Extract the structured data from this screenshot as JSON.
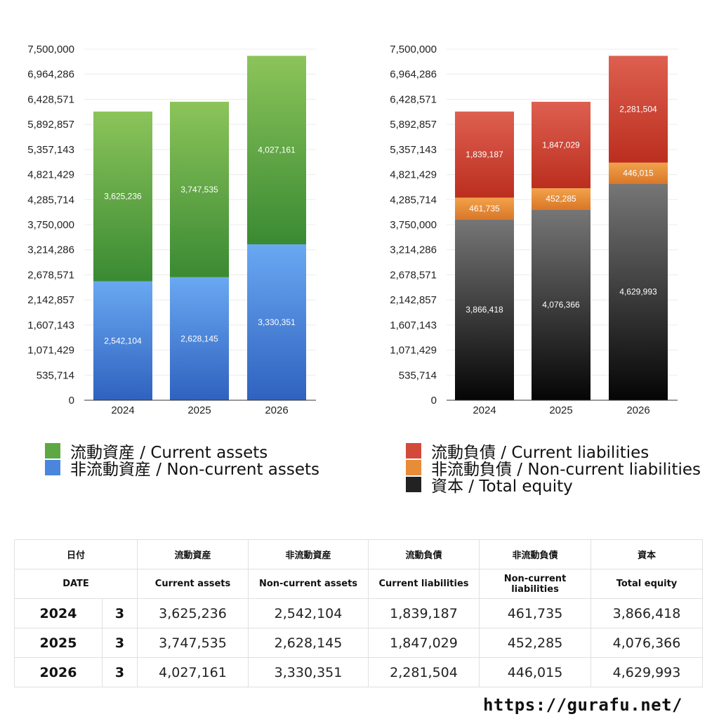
{
  "chart_data": [
    {
      "type": "bar",
      "stacked": true,
      "categories": [
        "2024",
        "2025",
        "2026"
      ],
      "ylim": [
        0,
        7500000
      ],
      "yticks": [
        "0",
        "535,714",
        "1,071,429",
        "1,607,143",
        "2,142,857",
        "2,678,571",
        "3,214,286",
        "3,750,000",
        "4,285,714",
        "4,821,429",
        "5,357,143",
        "5,892,857",
        "6,428,571",
        "6,964,286",
        "7,500,000"
      ],
      "grid": true,
      "legend_position": "bottom",
      "series": [
        {
          "name": "非流動資産 / Non-current assets",
          "values": [
            2542104,
            2628145,
            3330351
          ],
          "labels": [
            "2,542,104",
            "2,628,145",
            "3,330,351"
          ],
          "color_top": "#6aa8f2",
          "color_bottom": "#2f62bf"
        },
        {
          "name": "流動資産 / Current assets",
          "values": [
            3625236,
            3747535,
            4027161
          ],
          "labels": [
            "3,625,236",
            "3,747,535",
            "4,027,161"
          ],
          "color_top": "#8cc45a",
          "color_bottom": "#3a8a33"
        }
      ],
      "legend": [
        {
          "name": "流動資産 / Current assets",
          "color": "#5da845"
        },
        {
          "name": "非流動資産 / Non-current assets",
          "color": "#4a86dc"
        }
      ]
    },
    {
      "type": "bar",
      "stacked": true,
      "categories": [
        "2024",
        "2025",
        "2026"
      ],
      "ylim": [
        0,
        7500000
      ],
      "yticks": [
        "0",
        "535,714",
        "1,071,429",
        "1,607,143",
        "2,142,857",
        "2,678,571",
        "3,214,286",
        "3,750,000",
        "4,285,714",
        "4,821,429",
        "5,357,143",
        "5,892,857",
        "6,428,571",
        "6,964,286",
        "7,500,000"
      ],
      "grid": true,
      "legend_position": "bottom",
      "series": [
        {
          "name": "資本 / Total equity",
          "values": [
            3866418,
            4076366,
            4629993
          ],
          "labels": [
            "3,866,418",
            "4,076,366",
            "4,629,993"
          ],
          "color_top": "#767676",
          "color_bottom": "#050505"
        },
        {
          "name": "非流動負債 / Non-current liabilities",
          "values": [
            461735,
            452285,
            446015
          ],
          "labels": [
            "461,735",
            "452,285",
            "446,015"
          ],
          "color_top": "#f2a24a",
          "color_bottom": "#d9782a"
        },
        {
          "name": "流動負債 / Current liabilities",
          "values": [
            1839187,
            1847029,
            2281504
          ],
          "labels": [
            "1,839,187",
            "1,847,029",
            "2,281,504"
          ],
          "color_top": "#de6050",
          "color_bottom": "#bb2e1f"
        }
      ],
      "legend": [
        {
          "name": "流動負債 / Current liabilities",
          "color": "#d44a3a"
        },
        {
          "name": "非流動負債 / Non-current liabilities",
          "color": "#e88c38"
        },
        {
          "name": "資本 / Total equity",
          "color": "#222222"
        }
      ]
    }
  ],
  "table": {
    "headers_jp": [
      "日付",
      "",
      "流動資産",
      "非流動資産",
      "流動負債",
      "非流動負債",
      "資本"
    ],
    "headers_en": [
      "DATE",
      "",
      "Current assets",
      "Non-current assets",
      "Current liabilities",
      "Non-current liabilities",
      "Total equity"
    ],
    "rows": [
      [
        "2024",
        "3",
        "3,625,236",
        "2,542,104",
        "1,839,187",
        "461,735",
        "3,866,418"
      ],
      [
        "2025",
        "3",
        "3,747,535",
        "2,628,145",
        "1,847,029",
        "452,285",
        "4,076,366"
      ],
      [
        "2026",
        "3",
        "4,027,161",
        "3,330,351",
        "2,281,504",
        "446,015",
        "4,629,993"
      ]
    ]
  },
  "footer": {
    "url": "https://gurafu.net/"
  }
}
